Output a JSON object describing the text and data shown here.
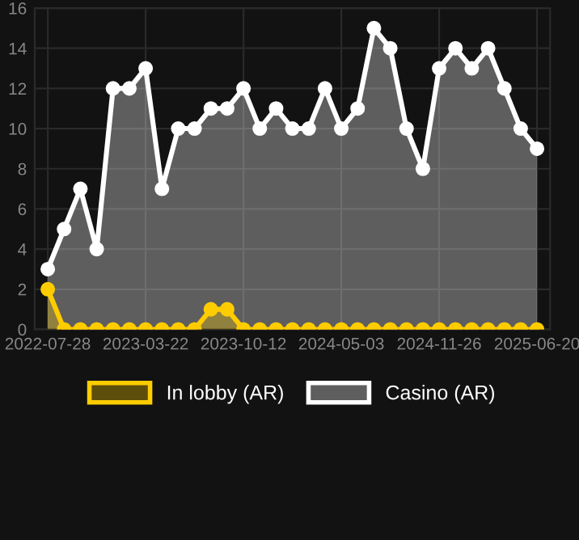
{
  "chart_data": {
    "type": "area",
    "categories": [
      "2022-07-28",
      null,
      null,
      null,
      null,
      null,
      "2023-03-22",
      null,
      null,
      null,
      null,
      null,
      "2023-10-12",
      null,
      null,
      null,
      null,
      null,
      "2024-05-03",
      null,
      null,
      null,
      null,
      null,
      "2024-11-26",
      null,
      null,
      null,
      null,
      null,
      "2025-06-20"
    ],
    "series": [
      {
        "name": "In lobby (AR)",
        "color": "#ffcc00",
        "values": [
          2,
          0,
          0,
          0,
          0,
          0,
          0,
          0,
          0,
          0,
          1,
          1,
          0,
          0,
          0,
          0,
          0,
          0,
          0,
          0,
          0,
          0,
          0,
          0,
          0,
          0,
          0,
          0,
          0,
          0,
          0
        ]
      },
      {
        "name": "Casino (AR)",
        "color": "#ffffff",
        "values": [
          3,
          5,
          7,
          4,
          12,
          12,
          13,
          7,
          10,
          10,
          11,
          11,
          12,
          10,
          11,
          10,
          10,
          12,
          10,
          11,
          15,
          14,
          10,
          8,
          13,
          14,
          13,
          14,
          12,
          10,
          9
        ]
      }
    ],
    "ylim": [
      0,
      16
    ],
    "yticks": [
      0,
      2,
      4,
      6,
      8,
      10,
      12,
      14,
      16
    ],
    "grid": true,
    "legend": "bottom",
    "marker": "circle",
    "line_style": "solid"
  }
}
